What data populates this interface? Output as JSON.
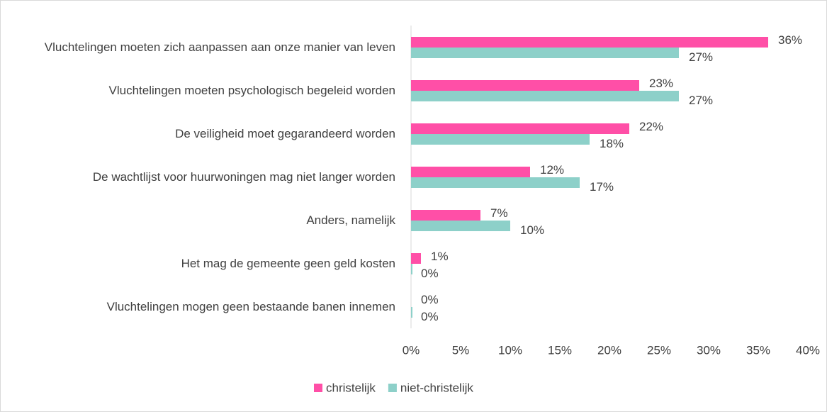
{
  "chart_data": {
    "type": "bar",
    "orientation": "horizontal",
    "categories": [
      "Vluchtelingen moeten zich aanpassen aan onze manier van leven",
      "Vluchtelingen moeten psychologisch begeleid worden",
      "De veiligheid moet gegarandeerd worden",
      "De wachtlijst voor huurwoningen mag niet langer worden",
      "Anders, namelijk",
      "Het mag de gemeente geen geld kosten",
      "Vluchtelingen mogen geen bestaande banen innemen"
    ],
    "series": [
      {
        "name": "christelijk",
        "color": "#ff4fa7",
        "values": [
          36,
          23,
          22,
          12,
          7,
          1,
          0
        ],
        "value_labels": [
          "36%",
          "23%",
          "22%",
          "12%",
          "7%",
          "1%",
          "0%"
        ]
      },
      {
        "name": "niet-christelijk",
        "color": "#8dd0c9",
        "values": [
          27,
          27,
          18,
          17,
          10,
          0,
          0
        ],
        "value_labels": [
          "27%",
          "27%",
          "18%",
          "17%",
          "10%",
          "0%",
          "0%"
        ]
      }
    ],
    "xlim": [
      0,
      40
    ],
    "xticks": [
      {
        "value": 0,
        "label": "0%"
      },
      {
        "value": 5,
        "label": "5%"
      },
      {
        "value": 10,
        "label": "10%"
      },
      {
        "value": 15,
        "label": "15%"
      },
      {
        "value": 20,
        "label": "20%"
      },
      {
        "value": 25,
        "label": "25%"
      },
      {
        "value": 30,
        "label": "30%"
      },
      {
        "value": 35,
        "label": "35%"
      },
      {
        "value": 40,
        "label": "40%"
      }
    ],
    "legend": "bottom"
  }
}
